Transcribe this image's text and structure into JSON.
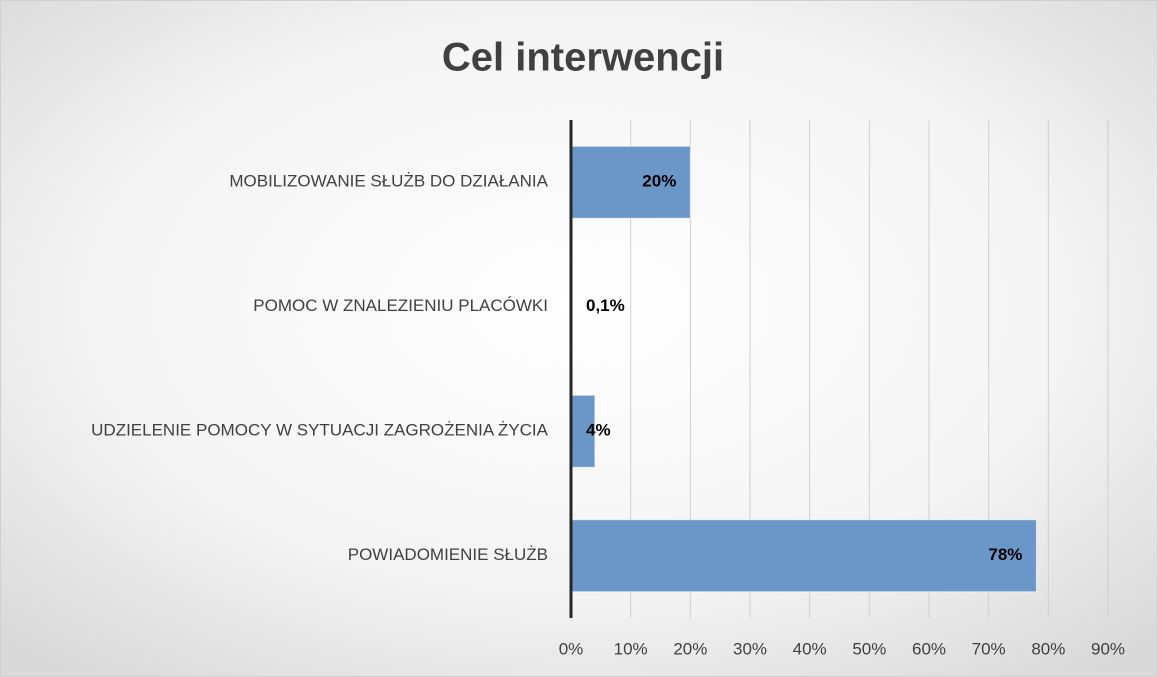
{
  "chart_data": {
    "type": "bar",
    "orientation": "horizontal",
    "title": "Cel interwencji",
    "categories": [
      "MOBILIZOWANIE SŁUŻB DO DZIAŁANIA",
      "POMOC W ZNALEZIENIU PLACÓWKI",
      "UDZIELENIE POMOCY W SYTUACJI ZAGROŻENIA ŻYCIA",
      "POWIADOMIENIE SŁUŻB"
    ],
    "values": [
      20,
      0.1,
      4,
      78
    ],
    "value_labels": [
      "20%",
      "0,1%",
      "4%",
      "78%"
    ],
    "color": "#6a96c8",
    "xlim": [
      0,
      90
    ],
    "xticks": [
      {
        "value": 0,
        "label": "0%"
      },
      {
        "value": 10,
        "label": "10%"
      },
      {
        "value": 20,
        "label": "20%"
      },
      {
        "value": 30,
        "label": "30%"
      },
      {
        "value": 40,
        "label": "40%"
      },
      {
        "value": 50,
        "label": "50%"
      },
      {
        "value": 60,
        "label": "60%"
      },
      {
        "value": 70,
        "label": "70%"
      },
      {
        "value": 80,
        "label": "80%"
      },
      {
        "value": 90,
        "label": "90%"
      }
    ],
    "grid": true
  }
}
